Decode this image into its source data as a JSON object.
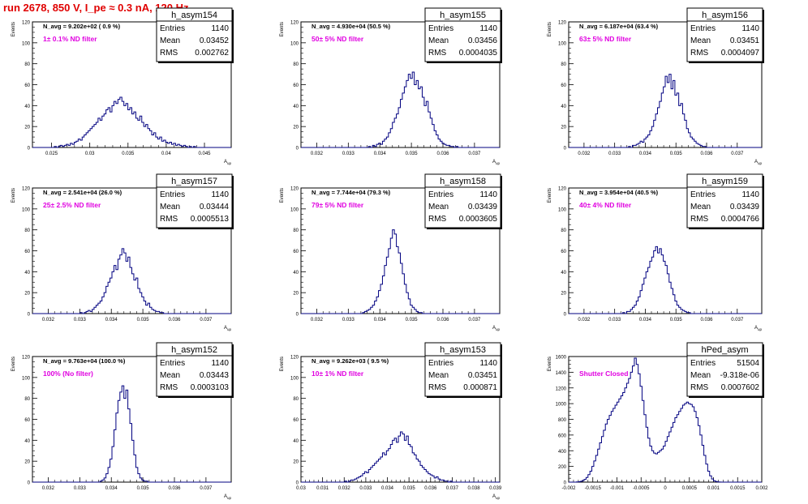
{
  "run_title": "run 2678,   850 V, I_pe ≈ 0.3 nA, 120 Hz",
  "colors": {
    "title": "#e00000",
    "filter_label": "#e000e0",
    "histogram": "#000080"
  },
  "chart_data": [
    {
      "type": "bar",
      "name": "h_asym154",
      "navg": "N_avg = 9.202e+02 ( 0.9 %)",
      "filter": "1± 0.1% ND filter",
      "stats": {
        "entries": "1140",
        "mean": "0.03452",
        "rms": "0.002762"
      },
      "xlabel": "A_{up}",
      "ylabel": "Events",
      "xlim": [
        0.0225,
        0.0485
      ],
      "ylim": [
        0,
        120
      ],
      "xticks": [
        "0.025",
        "0.03",
        "0.035",
        "0.04",
        "0.045"
      ],
      "xtick_vals": [
        0.025,
        0.03,
        0.035,
        0.04,
        0.045
      ],
      "yticks": [
        "0",
        "20",
        "40",
        "60",
        "80",
        "100",
        "120"
      ],
      "ytick_vals": [
        0,
        20,
        40,
        60,
        80,
        100,
        120
      ],
      "bin_start": 0.0225,
      "bin_width": 0.00026,
      "values": [
        0,
        0,
        0,
        0,
        0,
        0,
        0,
        0,
        0,
        0,
        0,
        1,
        0,
        1,
        2,
        1,
        2,
        3,
        2,
        4,
        3,
        5,
        6,
        8,
        7,
        10,
        12,
        14,
        16,
        18,
        20,
        22,
        24,
        28,
        26,
        30,
        32,
        36,
        38,
        34,
        40,
        44,
        42,
        46,
        48,
        44,
        40,
        42,
        36,
        38,
        32,
        34,
        28,
        26,
        30,
        24,
        20,
        22,
        18,
        16,
        12,
        14,
        10,
        8,
        10,
        6,
        7,
        5,
        4,
        5,
        3,
        4,
        2,
        3,
        2,
        1,
        2,
        1,
        0,
        1,
        0,
        1,
        0,
        0,
        0,
        0,
        0,
        0,
        0,
        0,
        0,
        0,
        0,
        0,
        0,
        0,
        0,
        0,
        0,
        0
      ]
    },
    {
      "type": "bar",
      "name": "h_asym155",
      "navg": "N_avg = 4.930e+04 (50.5 %)",
      "filter": "50± 5% ND filter",
      "stats": {
        "entries": "1140",
        "mean": "0.03456",
        "rms": "0.0004035"
      },
      "xlabel": "A_{up}",
      "ylabel": "Events",
      "xlim": [
        0.0315,
        0.0378
      ],
      "ylim": [
        0,
        120
      ],
      "xticks": [
        "0.032",
        "0.033",
        "0.034",
        "0.035",
        "0.036",
        "0.037"
      ],
      "xtick_vals": [
        0.032,
        0.033,
        0.034,
        0.035,
        0.036,
        0.037
      ],
      "yticks": [
        "0",
        "20",
        "40",
        "60",
        "80",
        "100",
        "120"
      ],
      "ytick_vals": [
        0,
        20,
        40,
        60,
        80,
        100,
        120
      ],
      "bin_start": 0.0315,
      "bin_width": 6.3e-05,
      "values": [
        0,
        0,
        0,
        0,
        0,
        0,
        0,
        0,
        0,
        0,
        0,
        0,
        0,
        0,
        0,
        0,
        0,
        0,
        0,
        0,
        0,
        0,
        0,
        0,
        0,
        0,
        0,
        0,
        0,
        0,
        0,
        0,
        0,
        0,
        1,
        0,
        2,
        1,
        3,
        4,
        3,
        6,
        8,
        10,
        14,
        18,
        24,
        28,
        32,
        38,
        46,
        52,
        58,
        64,
        70,
        66,
        72,
        60,
        64,
        56,
        58,
        48,
        40,
        44,
        34,
        28,
        22,
        16,
        12,
        8,
        6,
        4,
        3,
        2,
        2,
        1,
        1,
        0,
        1,
        0,
        0,
        0,
        0,
        0,
        0,
        0,
        0,
        0,
        0,
        0,
        0,
        0,
        0,
        0,
        0,
        0,
        0,
        0,
        0,
        0
      ]
    },
    {
      "type": "bar",
      "name": "h_asym156",
      "navg": "N_avg = 6.187e+04 (63.4 %)",
      "filter": "63± 5% ND filter",
      "stats": {
        "entries": "1140",
        "mean": "0.03451",
        "rms": "0.0004097"
      },
      "xlabel": "A_{up}",
      "ylabel": "Events",
      "xlim": [
        0.0315,
        0.0378
      ],
      "ylim": [
        0,
        120
      ],
      "xticks": [
        "0.032",
        "0.033",
        "0.034",
        "0.035",
        "0.036",
        "0.037"
      ],
      "xtick_vals": [
        0.032,
        0.033,
        0.034,
        0.035,
        0.036,
        0.037
      ],
      "yticks": [
        "0",
        "20",
        "40",
        "60",
        "80",
        "100",
        "120"
      ],
      "ytick_vals": [
        0,
        20,
        40,
        60,
        80,
        100,
        120
      ],
      "bin_start": 0.0315,
      "bin_width": 6.3e-05,
      "values": [
        0,
        0,
        0,
        0,
        0,
        0,
        0,
        0,
        0,
        0,
        0,
        0,
        0,
        0,
        0,
        0,
        0,
        0,
        0,
        0,
        0,
        0,
        0,
        0,
        0,
        0,
        0,
        0,
        0,
        0,
        0,
        1,
        0,
        2,
        2,
        3,
        4,
        6,
        5,
        8,
        10,
        12,
        16,
        20,
        26,
        32,
        38,
        44,
        52,
        58,
        68,
        62,
        70,
        56,
        64,
        50,
        52,
        40,
        42,
        32,
        26,
        18,
        14,
        10,
        8,
        6,
        4,
        3,
        2,
        1,
        1,
        0,
        0,
        0,
        0,
        0,
        0,
        0,
        0,
        0,
        0,
        0,
        0,
        0,
        0,
        0,
        0,
        0,
        0,
        0,
        0,
        0,
        0,
        0,
        0,
        0,
        0,
        0,
        0,
        0
      ]
    },
    {
      "type": "bar",
      "name": "h_asym157",
      "navg": "N_avg = 2.541e+04 (26.0 %)",
      "filter": "25± 2.5% ND filter",
      "stats": {
        "entries": "1140",
        "mean": "0.03444",
        "rms": "0.0005513"
      },
      "xlabel": "A_{up}",
      "ylabel": "Events",
      "xlim": [
        0.0315,
        0.0378
      ],
      "ylim": [
        0,
        120
      ],
      "xticks": [
        "0.032",
        "0.033",
        "0.034",
        "0.035",
        "0.036",
        "0.037"
      ],
      "xtick_vals": [
        0.032,
        0.033,
        0.034,
        0.035,
        0.036,
        0.037
      ],
      "yticks": [
        "0",
        "20",
        "40",
        "60",
        "80",
        "100",
        "120"
      ],
      "ytick_vals": [
        0,
        20,
        40,
        60,
        80,
        100,
        120
      ],
      "bin_start": 0.0315,
      "bin_width": 6.3e-05,
      "values": [
        0,
        0,
        0,
        0,
        0,
        0,
        0,
        0,
        0,
        0,
        0,
        0,
        0,
        0,
        0,
        0,
        0,
        0,
        0,
        0,
        0,
        0,
        0,
        0,
        1,
        0,
        1,
        2,
        3,
        2,
        4,
        6,
        8,
        10,
        12,
        16,
        20,
        26,
        30,
        34,
        40,
        46,
        42,
        52,
        56,
        62,
        58,
        50,
        54,
        44,
        38,
        32,
        34,
        24,
        20,
        16,
        12,
        8,
        10,
        6,
        4,
        3,
        2,
        2,
        1,
        1,
        0,
        0,
        0,
        0,
        0,
        0,
        0,
        0,
        0,
        0,
        0,
        0,
        0,
        0,
        0,
        0,
        0,
        0,
        0,
        0,
        0,
        0,
        0,
        0,
        0,
        0,
        0,
        0,
        0,
        0,
        0,
        0,
        0,
        0
      ]
    },
    {
      "type": "bar",
      "name": "h_asym158",
      "navg": "N_avg = 7.744e+04 (79.3 %)",
      "filter": "79± 5% ND filter",
      "stats": {
        "entries": "1140",
        "mean": "0.03439",
        "rms": "0.0003605"
      },
      "xlabel": "A_{up}",
      "ylabel": "Events",
      "xlim": [
        0.0315,
        0.0378
      ],
      "ylim": [
        0,
        120
      ],
      "xticks": [
        "0.032",
        "0.033",
        "0.034",
        "0.035",
        "0.036",
        "0.037"
      ],
      "xtick_vals": [
        0.032,
        0.033,
        0.034,
        0.035,
        0.036,
        0.037
      ],
      "yticks": [
        "0",
        "20",
        "40",
        "60",
        "80",
        "100",
        "120"
      ],
      "ytick_vals": [
        0,
        20,
        40,
        60,
        80,
        100,
        120
      ],
      "bin_start": 0.0315,
      "bin_width": 6.3e-05,
      "values": [
        0,
        0,
        0,
        0,
        0,
        0,
        0,
        0,
        0,
        0,
        0,
        0,
        0,
        0,
        0,
        0,
        0,
        0,
        0,
        0,
        0,
        0,
        0,
        0,
        0,
        0,
        0,
        0,
        0,
        0,
        0,
        1,
        2,
        3,
        4,
        6,
        8,
        12,
        16,
        22,
        28,
        36,
        46,
        54,
        62,
        72,
        80,
        76,
        64,
        58,
        48,
        38,
        28,
        20,
        14,
        8,
        6,
        4,
        2,
        1,
        1,
        0,
        0,
        0,
        0,
        0,
        0,
        0,
        0,
        0,
        0,
        0,
        0,
        0,
        0,
        0,
        0,
        0,
        0,
        0,
        0,
        0,
        0,
        0,
        0,
        0,
        0,
        0,
        0,
        0,
        0,
        0,
        0,
        0,
        0,
        0,
        0,
        0,
        0,
        0
      ]
    },
    {
      "type": "bar",
      "name": "h_asym159",
      "navg": "N_avg = 3.954e+04 (40.5 %)",
      "filter": "40± 4% ND filter",
      "stats": {
        "entries": "1140",
        "mean": "0.03439",
        "rms": "0.0004766"
      },
      "xlabel": "A_{up}",
      "ylabel": "Events",
      "xlim": [
        0.0315,
        0.0378
      ],
      "ylim": [
        0,
        120
      ],
      "xticks": [
        "0.032",
        "0.033",
        "0.034",
        "0.035",
        "0.036",
        "0.037"
      ],
      "xtick_vals": [
        0.032,
        0.033,
        0.034,
        0.035,
        0.036,
        0.037
      ],
      "yticks": [
        "0",
        "20",
        "40",
        "60",
        "80",
        "100",
        "120"
      ],
      "ytick_vals": [
        0,
        20,
        40,
        60,
        80,
        100,
        120
      ],
      "bin_start": 0.0315,
      "bin_width": 6.3e-05,
      "values": [
        0,
        0,
        0,
        0,
        0,
        0,
        0,
        0,
        0,
        0,
        0,
        0,
        0,
        0,
        0,
        0,
        0,
        0,
        0,
        0,
        0,
        0,
        0,
        0,
        0,
        0,
        0,
        0,
        1,
        0,
        2,
        2,
        4,
        6,
        8,
        12,
        16,
        22,
        28,
        34,
        40,
        44,
        50,
        54,
        60,
        64,
        58,
        62,
        56,
        50,
        46,
        38,
        30,
        24,
        18,
        12,
        8,
        6,
        4,
        3,
        2,
        1,
        1,
        0,
        0,
        0,
        0,
        0,
        0,
        0,
        0,
        0,
        0,
        0,
        0,
        0,
        0,
        0,
        0,
        0,
        0,
        0,
        0,
        0,
        0,
        0,
        0,
        0,
        0,
        0,
        0,
        0,
        0,
        0,
        0,
        0,
        0,
        0,
        0,
        0
      ]
    },
    {
      "type": "bar",
      "name": "h_asym152",
      "navg": "N_avg = 9.763e+04 (100.0 %)",
      "filter": "100% (No filter)",
      "stats": {
        "entries": "1140",
        "mean": "0.03443",
        "rms": "0.0003103"
      },
      "xlabel": "A_{up}",
      "ylabel": "Events",
      "xlim": [
        0.0315,
        0.0378
      ],
      "ylim": [
        0,
        120
      ],
      "xticks": [
        "0.032",
        "0.033",
        "0.034",
        "0.035",
        "0.036",
        "0.037"
      ],
      "xtick_vals": [
        0.032,
        0.033,
        0.034,
        0.035,
        0.036,
        0.037
      ],
      "yticks": [
        "0",
        "20",
        "40",
        "60",
        "80",
        "100",
        "120"
      ],
      "ytick_vals": [
        0,
        20,
        40,
        60,
        80,
        100,
        120
      ],
      "bin_start": 0.0315,
      "bin_width": 6.3e-05,
      "values": [
        0,
        0,
        0,
        0,
        0,
        0,
        0,
        0,
        0,
        0,
        0,
        0,
        0,
        0,
        0,
        0,
        0,
        0,
        0,
        0,
        0,
        0,
        0,
        0,
        0,
        0,
        0,
        0,
        0,
        0,
        0,
        0,
        0,
        0,
        1,
        2,
        4,
        8,
        14,
        22,
        34,
        50,
        66,
        78,
        86,
        92,
        80,
        88,
        70,
        56,
        40,
        26,
        14,
        8,
        4,
        2,
        1,
        1,
        0,
        0,
        0,
        0,
        0,
        0,
        0,
        0,
        0,
        0,
        0,
        0,
        0,
        0,
        0,
        0,
        0,
        0,
        0,
        0,
        0,
        0,
        0,
        0,
        0,
        0,
        0,
        0,
        0,
        0,
        0,
        0,
        0,
        0,
        0,
        0,
        0,
        0,
        0,
        0,
        0,
        0
      ]
    },
    {
      "type": "bar",
      "name": "h_asym153",
      "navg": "N_avg = 9.262e+03 ( 9.5 %)",
      "filter": "10± 1% ND filter",
      "stats": {
        "entries": "1140",
        "mean": "0.03451",
        "rms": "0.000871"
      },
      "xlabel": "A_{up}",
      "ylabel": "Events",
      "xlim": [
        0.03,
        0.0392
      ],
      "ylim": [
        0,
        120
      ],
      "xticks": [
        "0.03",
        "0.031",
        "0.032",
        "0.033",
        "0.034",
        "0.035",
        "0.036",
        "0.037",
        "0.038",
        "0.039"
      ],
      "xtick_vals": [
        0.03,
        0.031,
        0.032,
        0.033,
        0.034,
        0.035,
        0.036,
        0.037,
        0.038,
        0.039
      ],
      "yticks": [
        "0",
        "20",
        "40",
        "60",
        "80",
        "100",
        "120"
      ],
      "ytick_vals": [
        0,
        20,
        40,
        60,
        80,
        100,
        120
      ],
      "bin_start": 0.03,
      "bin_width": 9.2e-05,
      "values": [
        0,
        0,
        0,
        0,
        0,
        0,
        0,
        0,
        0,
        0,
        0,
        0,
        0,
        0,
        0,
        0,
        0,
        0,
        0,
        0,
        0,
        0,
        1,
        0,
        1,
        2,
        2,
        3,
        4,
        5,
        6,
        8,
        10,
        9,
        12,
        14,
        16,
        18,
        20,
        22,
        24,
        28,
        26,
        30,
        32,
        36,
        40,
        42,
        38,
        44,
        48,
        46,
        40,
        44,
        36,
        34,
        28,
        26,
        22,
        20,
        16,
        14,
        12,
        10,
        8,
        7,
        6,
        4,
        5,
        3,
        2,
        2,
        1,
        1,
        0,
        1,
        0,
        0,
        0,
        0,
        0,
        0,
        0,
        0,
        0,
        0,
        0,
        0,
        0,
        0,
        0,
        0,
        0,
        0,
        0,
        0,
        0,
        0,
        0,
        0
      ]
    },
    {
      "type": "bar",
      "name": "hPed_asym",
      "navg": "",
      "filter": "Shutter Closed",
      "stats": {
        "entries": "51504",
        "mean": "-9.318e-06",
        "rms": "0.0007602"
      },
      "xlabel": "",
      "ylabel": "Events",
      "xlim": [
        -0.002,
        0.002
      ],
      "ylim": [
        0,
        1600
      ],
      "xticks": [
        "-0.002",
        "-0.0015",
        "-0.001",
        "-0.0005",
        "0",
        "0.0005",
        "0.001",
        "0.0015",
        "0.002"
      ],
      "xtick_vals": [
        -0.002,
        -0.0015,
        -0.001,
        -0.0005,
        0,
        0.0005,
        0.001,
        0.0015,
        0.002
      ],
      "yticks": [
        "0",
        "200",
        "400",
        "600",
        "800",
        "1000",
        "1200",
        "1400",
        "1600"
      ],
      "ytick_vals": [
        0,
        200,
        400,
        600,
        800,
        1000,
        1200,
        1400,
        1600
      ],
      "bin_start": -0.002,
      "bin_width": 4e-05,
      "values": [
        0,
        0,
        0,
        0,
        2,
        5,
        10,
        20,
        35,
        60,
        95,
        140,
        200,
        270,
        340,
        420,
        500,
        580,
        660,
        740,
        800,
        850,
        900,
        940,
        980,
        1020,
        1060,
        1100,
        1140,
        1200,
        1260,
        1320,
        1400,
        1480,
        1580,
        1500,
        1380,
        1220,
        1040,
        860,
        700,
        560,
        460,
        400,
        370,
        360,
        380,
        400,
        420,
        460,
        520,
        580,
        640,
        700,
        760,
        820,
        860,
        900,
        940,
        980,
        1000,
        1020,
        1000,
        990,
        960,
        900,
        820,
        720,
        600,
        470,
        340,
        230,
        140,
        80,
        40,
        18,
        8,
        3,
        1,
        0,
        0,
        0,
        0,
        0,
        0,
        0,
        0,
        0,
        0,
        0,
        0,
        0,
        0,
        0,
        0,
        0,
        0,
        0,
        0,
        0
      ]
    }
  ]
}
